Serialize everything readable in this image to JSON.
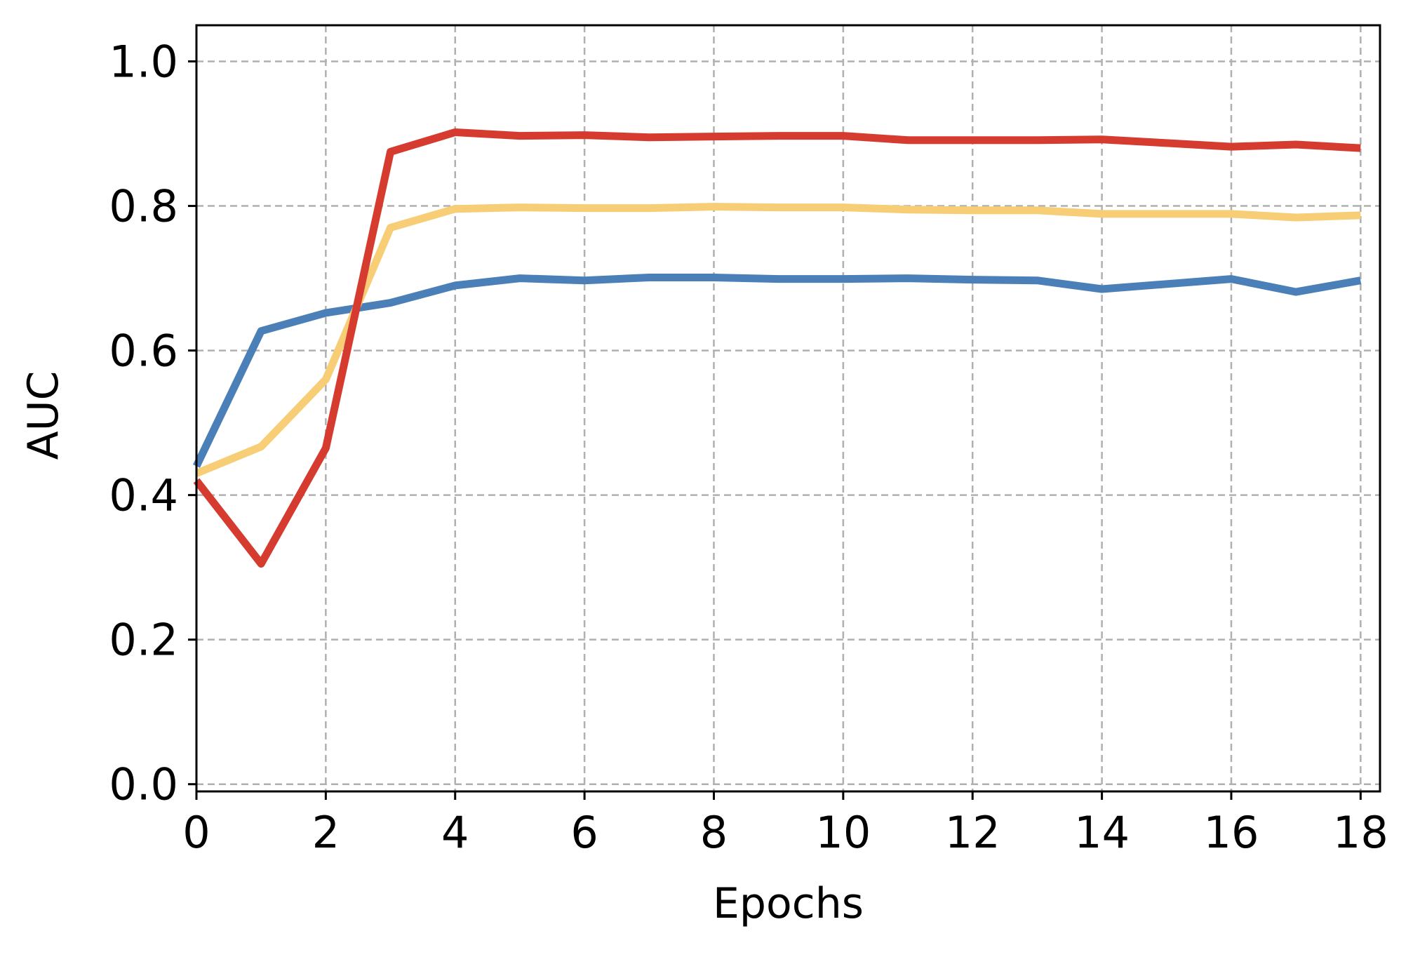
{
  "chart_data": {
    "type": "line",
    "title": "",
    "xlabel": "Epochs",
    "ylabel": "AUC",
    "xlim": [
      0,
      18.3
    ],
    "ylim": [
      -0.01,
      1.05
    ],
    "xticks": [
      0,
      2,
      4,
      6,
      8,
      10,
      12,
      14,
      16,
      18
    ],
    "yticks": [
      0.0,
      0.2,
      0.4,
      0.6,
      0.8,
      1.0
    ],
    "xtick_labels": [
      "0",
      "2",
      "4",
      "6",
      "8",
      "10",
      "12",
      "14",
      "16",
      "18"
    ],
    "ytick_labels": [
      "0.0",
      "0.2",
      "0.4",
      "0.6",
      "0.8",
      "1.0"
    ],
    "grid": true,
    "legend": "none",
    "x": [
      0,
      1,
      2,
      3,
      4,
      5,
      6,
      7,
      8,
      9,
      10,
      11,
      12,
      13,
      14,
      15,
      16,
      17,
      18
    ],
    "series": [
      {
        "color": "#4a7fb8",
        "values": [
          0.44,
          0.627,
          0.652,
          0.666,
          0.69,
          0.7,
          0.697,
          0.701,
          0.701,
          0.699,
          0.699,
          0.7,
          0.698,
          0.697,
          0.685,
          0.692,
          0.699,
          0.681,
          0.697
        ]
      },
      {
        "color": "#f7cd76",
        "values": [
          0.43,
          0.467,
          0.56,
          0.77,
          0.796,
          0.798,
          0.797,
          0.797,
          0.799,
          0.798,
          0.798,
          0.795,
          0.794,
          0.794,
          0.789,
          0.789,
          0.789,
          0.784,
          0.787
        ]
      },
      {
        "color": "#d63b2f",
        "values": [
          0.42,
          0.305,
          0.465,
          0.875,
          0.902,
          0.897,
          0.898,
          0.895,
          0.896,
          0.897,
          0.897,
          0.891,
          0.891,
          0.891,
          0.892,
          0.887,
          0.882,
          0.885,
          0.88
        ]
      }
    ]
  }
}
